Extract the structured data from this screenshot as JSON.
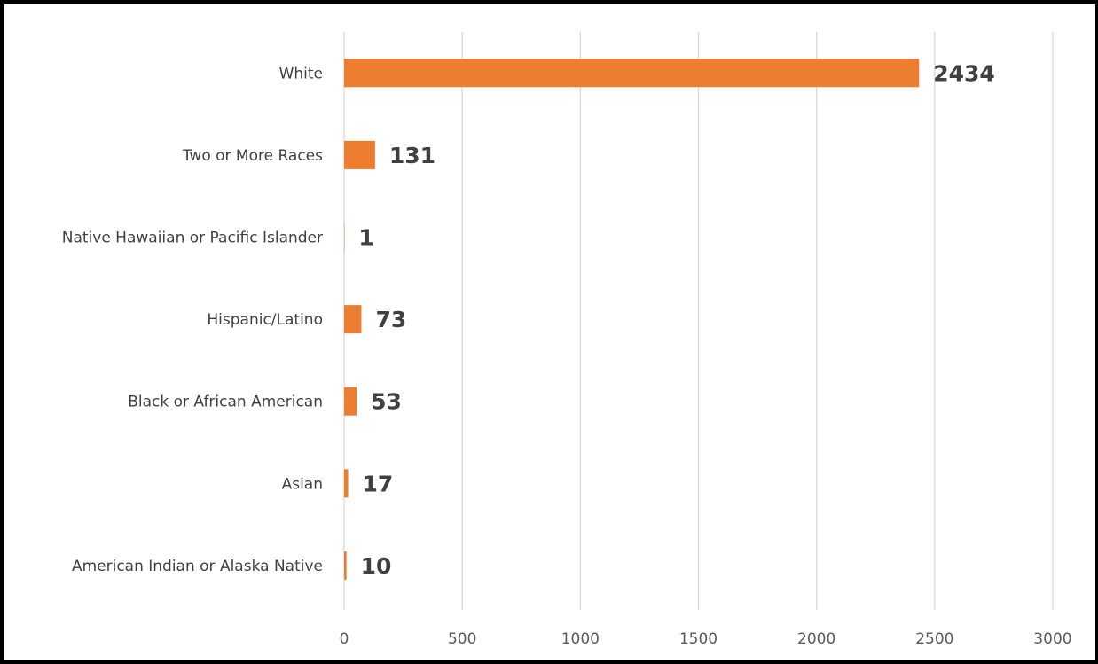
{
  "chart_data": {
    "type": "bar",
    "orientation": "horizontal",
    "categories": [
      "White",
      "Two or More Races",
      "Native Hawaiian or Pacific Islander",
      "Hispanic/Latino",
      "Black or African American",
      "Asian",
      "American Indian or Alaska Native"
    ],
    "values": [
      2434,
      131,
      1,
      73,
      53,
      17,
      10
    ],
    "data_labels": [
      "2434",
      "131",
      "1",
      "73",
      "53",
      "17",
      "10"
    ],
    "xlim": [
      0,
      3000
    ],
    "x_ticks": [
      0,
      500,
      1000,
      1500,
      2000,
      2500,
      3000
    ],
    "x_tick_labels": [
      "0",
      "500",
      "1000",
      "1500",
      "2000",
      "2500",
      "3000"
    ],
    "grid": "vertical",
    "legend": "none",
    "bar_color": "#ED7D31",
    "grid_color": "#D9D9D9"
  }
}
